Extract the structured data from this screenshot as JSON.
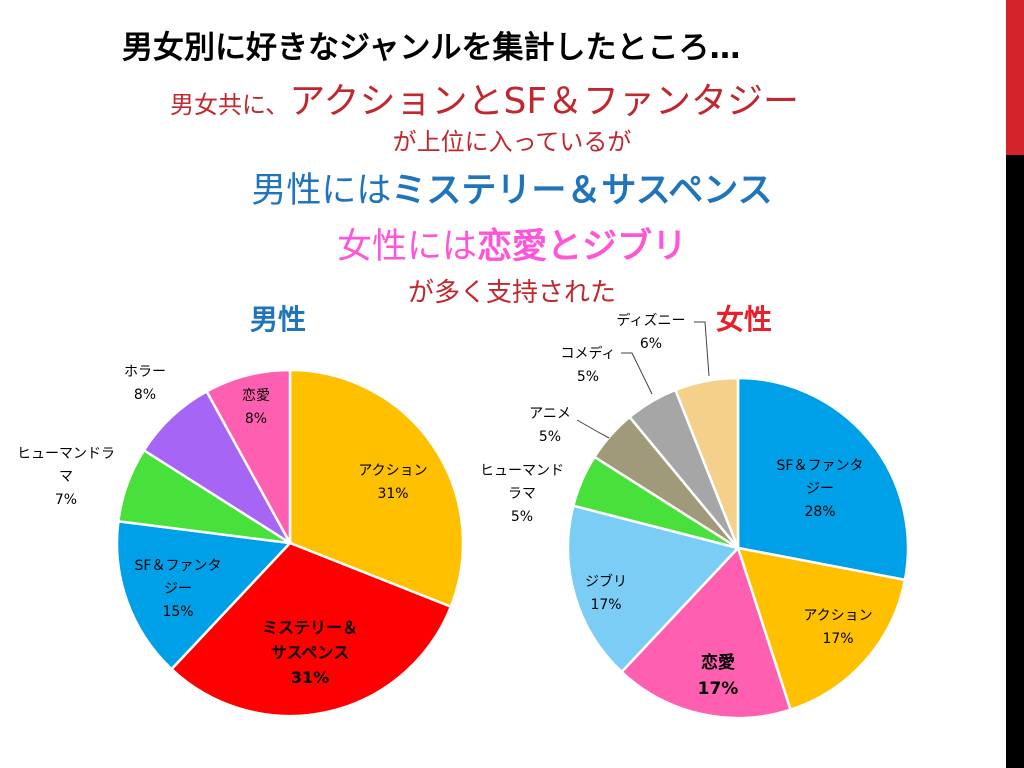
{
  "slide": {
    "title": "男女別に好きなジャンルを集計したところ…",
    "line2_small": "男女共に、",
    "line2_large": "アクションとSF＆ファンタジー",
    "line3": "が上位に入っているが",
    "line4_plain": "男性には",
    "line4_bold": "ミステリー＆サスペンス",
    "line5_plain": "女性には",
    "line5_bold": "恋愛とジブリ",
    "line6": "が多く支持された",
    "colors": {
      "accent_red": "#d4242b",
      "accent_black": "#000000"
    }
  },
  "chart_data": [
    {
      "type": "pie",
      "title": "男性",
      "title_color": "#1f74bb",
      "slices": [
        {
          "label": "アクション",
          "lines": [
            "アクション"
          ],
          "value": 31,
          "color": "#ffc000"
        },
        {
          "label": "ミステリー＆サスペンス",
          "lines": [
            "ミステリー＆",
            "サスペンス"
          ],
          "value": 31,
          "color": "#ff0000",
          "bold": true
        },
        {
          "label": "SF＆ファンタジー",
          "lines": [
            "SF＆ファンタ",
            "ジー"
          ],
          "value": 15,
          "color": "#00a0e9"
        },
        {
          "label": "ヒューマンドラマ",
          "lines": [
            "ヒューマンドラ",
            "マ"
          ],
          "value": 7,
          "color": "#48e03a"
        },
        {
          "label": "ホラー",
          "lines": [
            "ホラー"
          ],
          "value": 8,
          "color": "#a665f5"
        },
        {
          "label": "恋愛",
          "lines": [
            "恋愛"
          ],
          "value": 8,
          "color": "#ff5fb0"
        }
      ]
    },
    {
      "type": "pie",
      "title": "女性",
      "title_color": "#e8202a",
      "slices": [
        {
          "label": "SF＆ファンタジー",
          "lines": [
            "SF＆ファンタ",
            "ジー"
          ],
          "value": 28,
          "color": "#00a0e9"
        },
        {
          "label": "アクション",
          "lines": [
            "アクション"
          ],
          "value": 17,
          "color": "#ffc000"
        },
        {
          "label": "恋愛",
          "lines": [
            "恋愛"
          ],
          "value": 17,
          "color": "#ff5fb0",
          "bold": true
        },
        {
          "label": "ジブリ",
          "lines": [
            "ジブリ"
          ],
          "value": 17,
          "color": "#7ccdf5"
        },
        {
          "label": "ヒューマンドラマ",
          "lines": [
            "ヒューマンド",
            "ラマ"
          ],
          "value": 5,
          "color": "#48e03a"
        },
        {
          "label": "アニメ",
          "lines": [
            "アニメ"
          ],
          "value": 5,
          "color": "#a09a7b"
        },
        {
          "label": "コメディ",
          "lines": [
            "コメディ"
          ],
          "value": 5,
          "color": "#a6a6a6"
        },
        {
          "label": "ディズニー",
          "lines": [
            "ディズニー"
          ],
          "value": 6,
          "color": "#f5d08a"
        }
      ]
    }
  ]
}
